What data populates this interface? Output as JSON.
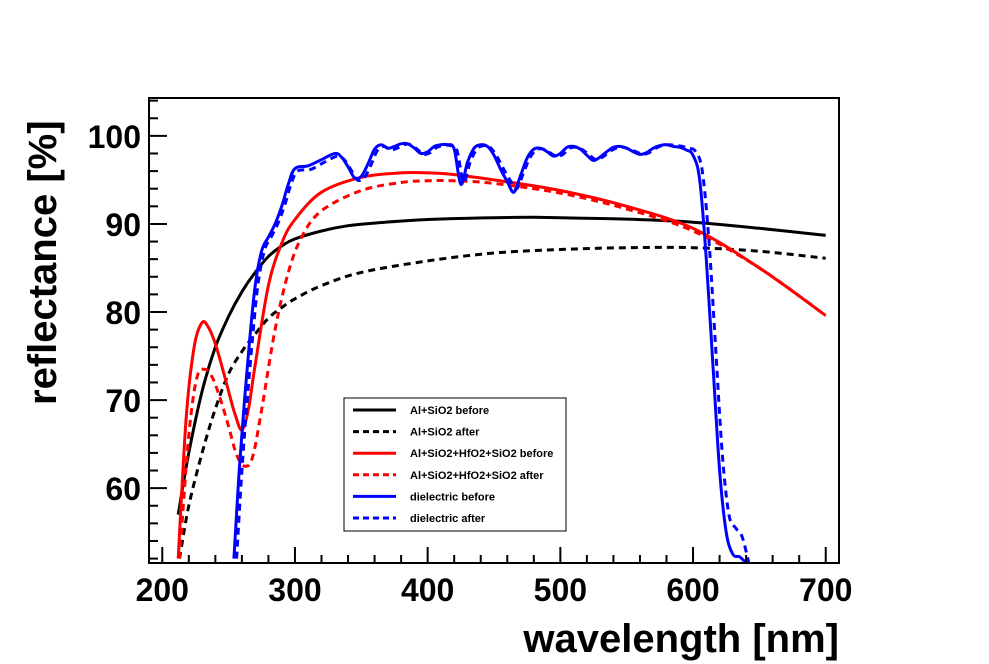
{
  "chart_data": {
    "type": "line",
    "title": "",
    "xlabel": "wavelength [nm]",
    "ylabel": "reflectance [%]",
    "xlim": [
      190,
      710
    ],
    "ylim": [
      51.5,
      104.3
    ],
    "x_ticks": [
      200,
      300,
      400,
      500,
      600,
      700
    ],
    "y_ticks": [
      60,
      70,
      80,
      90,
      100
    ],
    "grid": false,
    "legend_position": "lower-center",
    "series": [
      {
        "name": "Al+SiO2 before",
        "color": "#000000",
        "dash": "solid",
        "x": [
          212,
          220,
          230,
          240,
          250,
          260,
          270,
          280,
          290,
          300,
          320,
          340,
          360,
          400,
          450,
          480,
          500,
          550,
          600,
          650,
          700
        ],
        "y": [
          57,
          64,
          71,
          76,
          79.5,
          82.3,
          84.5,
          86.3,
          87.5,
          88.3,
          89.2,
          89.8,
          90.1,
          90.5,
          90.7,
          90.75,
          90.7,
          90.55,
          90.2,
          89.5,
          88.7
        ]
      },
      {
        "name": "Al+SiO2 after",
        "color": "#000000",
        "dash": "dashed",
        "x": [
          213,
          220,
          230,
          240,
          250,
          260,
          270,
          280,
          290,
          300,
          320,
          350,
          400,
          450,
          500,
          550,
          600,
          650,
          700
        ],
        "y": [
          52,
          58,
          64,
          69,
          73,
          75.5,
          77.5,
          79.3,
          80.5,
          81.5,
          83,
          84.5,
          85.8,
          86.7,
          87.1,
          87.3,
          87.3,
          86.9,
          86.1
        ]
      },
      {
        "name": "Al+SiO2+HfO2+SiO2 before",
        "color": "#ff0000",
        "dash": "solid",
        "x": [
          212,
          218,
          224,
          230,
          235,
          240,
          245,
          250,
          255,
          260,
          265,
          270,
          280,
          290,
          300,
          320,
          350,
          380,
          400,
          420,
          450,
          500,
          550,
          600,
          650,
          700
        ],
        "y": [
          52,
          68,
          76,
          78.8,
          78.2,
          76.4,
          73.8,
          71,
          68.3,
          66.6,
          69,
          74,
          83,
          87.8,
          90.5,
          93.6,
          95.3,
          95.8,
          95.8,
          95.6,
          95,
          93.8,
          92,
          89.5,
          85,
          79.6
        ]
      },
      {
        "name": "Al+SiO2+HfO2+SiO2 after",
        "color": "#ff0000",
        "dash": "dashed",
        "x": [
          213,
          220,
          226,
          232,
          238,
          244,
          250,
          256,
          262,
          268,
          275,
          285,
          295,
          305,
          320,
          350,
          380,
          400,
          420,
          450,
          500,
          550,
          600,
          650,
          700
        ],
        "y": [
          52,
          66,
          72.5,
          73.5,
          72.5,
          70,
          67,
          63.8,
          62.5,
          63.5,
          69,
          78,
          84.5,
          88.5,
          91.5,
          93.8,
          94.7,
          94.9,
          94.9,
          94.6,
          93.5,
          91.7,
          89.2,
          85,
          79.6
        ]
      },
      {
        "name": "dielectric before",
        "color": "#0000ff",
        "dash": "solid",
        "x": [
          254,
          258,
          262,
          266,
          270,
          275,
          280,
          285,
          290,
          295,
          300,
          310,
          320,
          330,
          335,
          340,
          345,
          350,
          355,
          360,
          365,
          370,
          375,
          380,
          385,
          390,
          395,
          400,
          405,
          410,
          415,
          420,
          425,
          430,
          435,
          440,
          445,
          450,
          455,
          460,
          465,
          470,
          475,
          480,
          485,
          490,
          495,
          500,
          505,
          510,
          515,
          520,
          525,
          530,
          535,
          540,
          545,
          550,
          555,
          560,
          565,
          570,
          575,
          580,
          585,
          590,
          595,
          600,
          605,
          610,
          615,
          620,
          625,
          630,
          635,
          640
        ],
        "y": [
          52,
          62,
          70,
          77,
          83,
          87,
          88.5,
          90,
          92,
          94.5,
          96.3,
          96.6,
          97.3,
          98,
          97.6,
          96.5,
          95.2,
          95.4,
          96.8,
          98.5,
          99,
          98.6,
          98.8,
          99.1,
          99.1,
          98.6,
          98,
          98.2,
          98.8,
          99,
          99,
          98.5,
          94.5,
          97,
          98.6,
          99,
          98.8,
          97.8,
          96.2,
          94.8,
          93.6,
          95.5,
          97.5,
          98.5,
          98.6,
          98.2,
          97.7,
          98,
          98.7,
          98.8,
          98.5,
          97.8,
          97.2,
          97.6,
          98.2,
          98.7,
          98.8,
          98.6,
          98.2,
          97.9,
          98.1,
          98.6,
          98.9,
          99,
          98.8,
          98.7,
          98.4,
          97.8,
          95,
          86,
          74,
          62,
          55,
          52.5,
          52.2,
          51.5
        ],
        "_note": ""
      },
      {
        "name": "dielectric after",
        "color": "#0000ff",
        "dash": "dashed",
        "x": [
          256,
          260,
          264,
          268,
          272,
          277,
          282,
          287,
          292,
          297,
          302,
          312,
          322,
          332,
          337,
          342,
          347,
          352,
          357,
          362,
          367,
          372,
          377,
          382,
          387,
          392,
          397,
          402,
          407,
          412,
          417,
          422,
          427,
          432,
          437,
          442,
          447,
          452,
          457,
          462,
          467,
          472,
          477,
          482,
          487,
          492,
          497,
          502,
          507,
          512,
          517,
          522,
          527,
          532,
          537,
          542,
          547,
          552,
          557,
          562,
          567,
          572,
          577,
          582,
          587,
          592,
          597,
          602,
          607,
          612,
          617,
          622,
          627,
          632,
          637,
          642
        ],
        "y": [
          52,
          62,
          70,
          77,
          83,
          87,
          88.5,
          90,
          92,
          94.5,
          96,
          96.2,
          97,
          97.7,
          97.3,
          96.2,
          95,
          95.2,
          96.6,
          98.3,
          98.8,
          98.4,
          98.6,
          99,
          99,
          98.5,
          97.9,
          98.1,
          98.7,
          98.9,
          98.9,
          98.4,
          94.8,
          97,
          98.5,
          98.9,
          98.7,
          97.7,
          96.3,
          95,
          94,
          95.7,
          97.5,
          98.4,
          98.5,
          98.1,
          97.7,
          97.9,
          98.6,
          98.7,
          98.4,
          97.8,
          97.3,
          97.6,
          98.2,
          98.6,
          98.7,
          98.5,
          98.2,
          97.9,
          98.1,
          98.6,
          98.9,
          99,
          98.9,
          98.8,
          98.6,
          98.2,
          96,
          88,
          76,
          64,
          57,
          55.5,
          54.5,
          51.5
        ]
      }
    ]
  }
}
